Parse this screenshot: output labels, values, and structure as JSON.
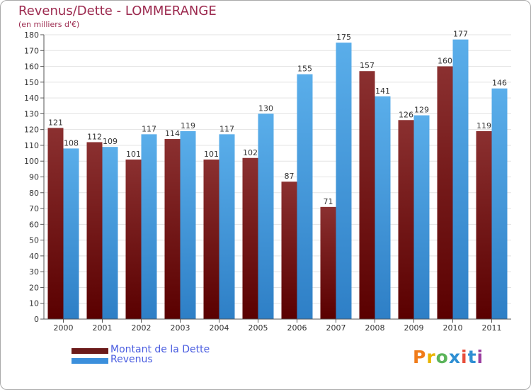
{
  "title": "Revenus/Dette - LOMMERANGE",
  "subtitle": "(en milliers d'€)",
  "legend": [
    {
      "label": "Montant de la Dette",
      "color": "#6b1a1a"
    },
    {
      "label": "Revenus",
      "color": "#3b8fdc"
    }
  ],
  "logo": {
    "text": "Proxiti",
    "colors": [
      "#f07c1a",
      "#e8b400",
      "#5bb45a",
      "#2f8fd3",
      "#e84e3a",
      "#2f8fd3",
      "#9b3fa0"
    ]
  },
  "colors": {
    "debt_top": "#8b3030",
    "debt_bottom": "#5a0000",
    "rev_top": "#5aaeea",
    "rev_bottom": "#2e7fc6",
    "grid": "#e3e3e3",
    "axis": "#555555",
    "text": "#333333"
  },
  "chart_data": {
    "type": "bar",
    "title": "Revenus/Dette - LOMMERANGE",
    "ylabel": "(en milliers d'€)",
    "xlabel": "",
    "categories": [
      "2000",
      "2001",
      "2002",
      "2003",
      "2004",
      "2005",
      "2006",
      "2007",
      "2008",
      "2009",
      "2010",
      "2011"
    ],
    "series": [
      {
        "name": "Montant de la Dette",
        "values": [
          121,
          112,
          101,
          114,
          101,
          102,
          87,
          71,
          157,
          126,
          160,
          119
        ]
      },
      {
        "name": "Revenus",
        "values": [
          108,
          109,
          117,
          119,
          117,
          130,
          155,
          175,
          141,
          129,
          177,
          146
        ]
      }
    ],
    "ylim": [
      0,
      180
    ],
    "ytick_step": 10,
    "grid": true,
    "legend_position": "bottom-left"
  }
}
